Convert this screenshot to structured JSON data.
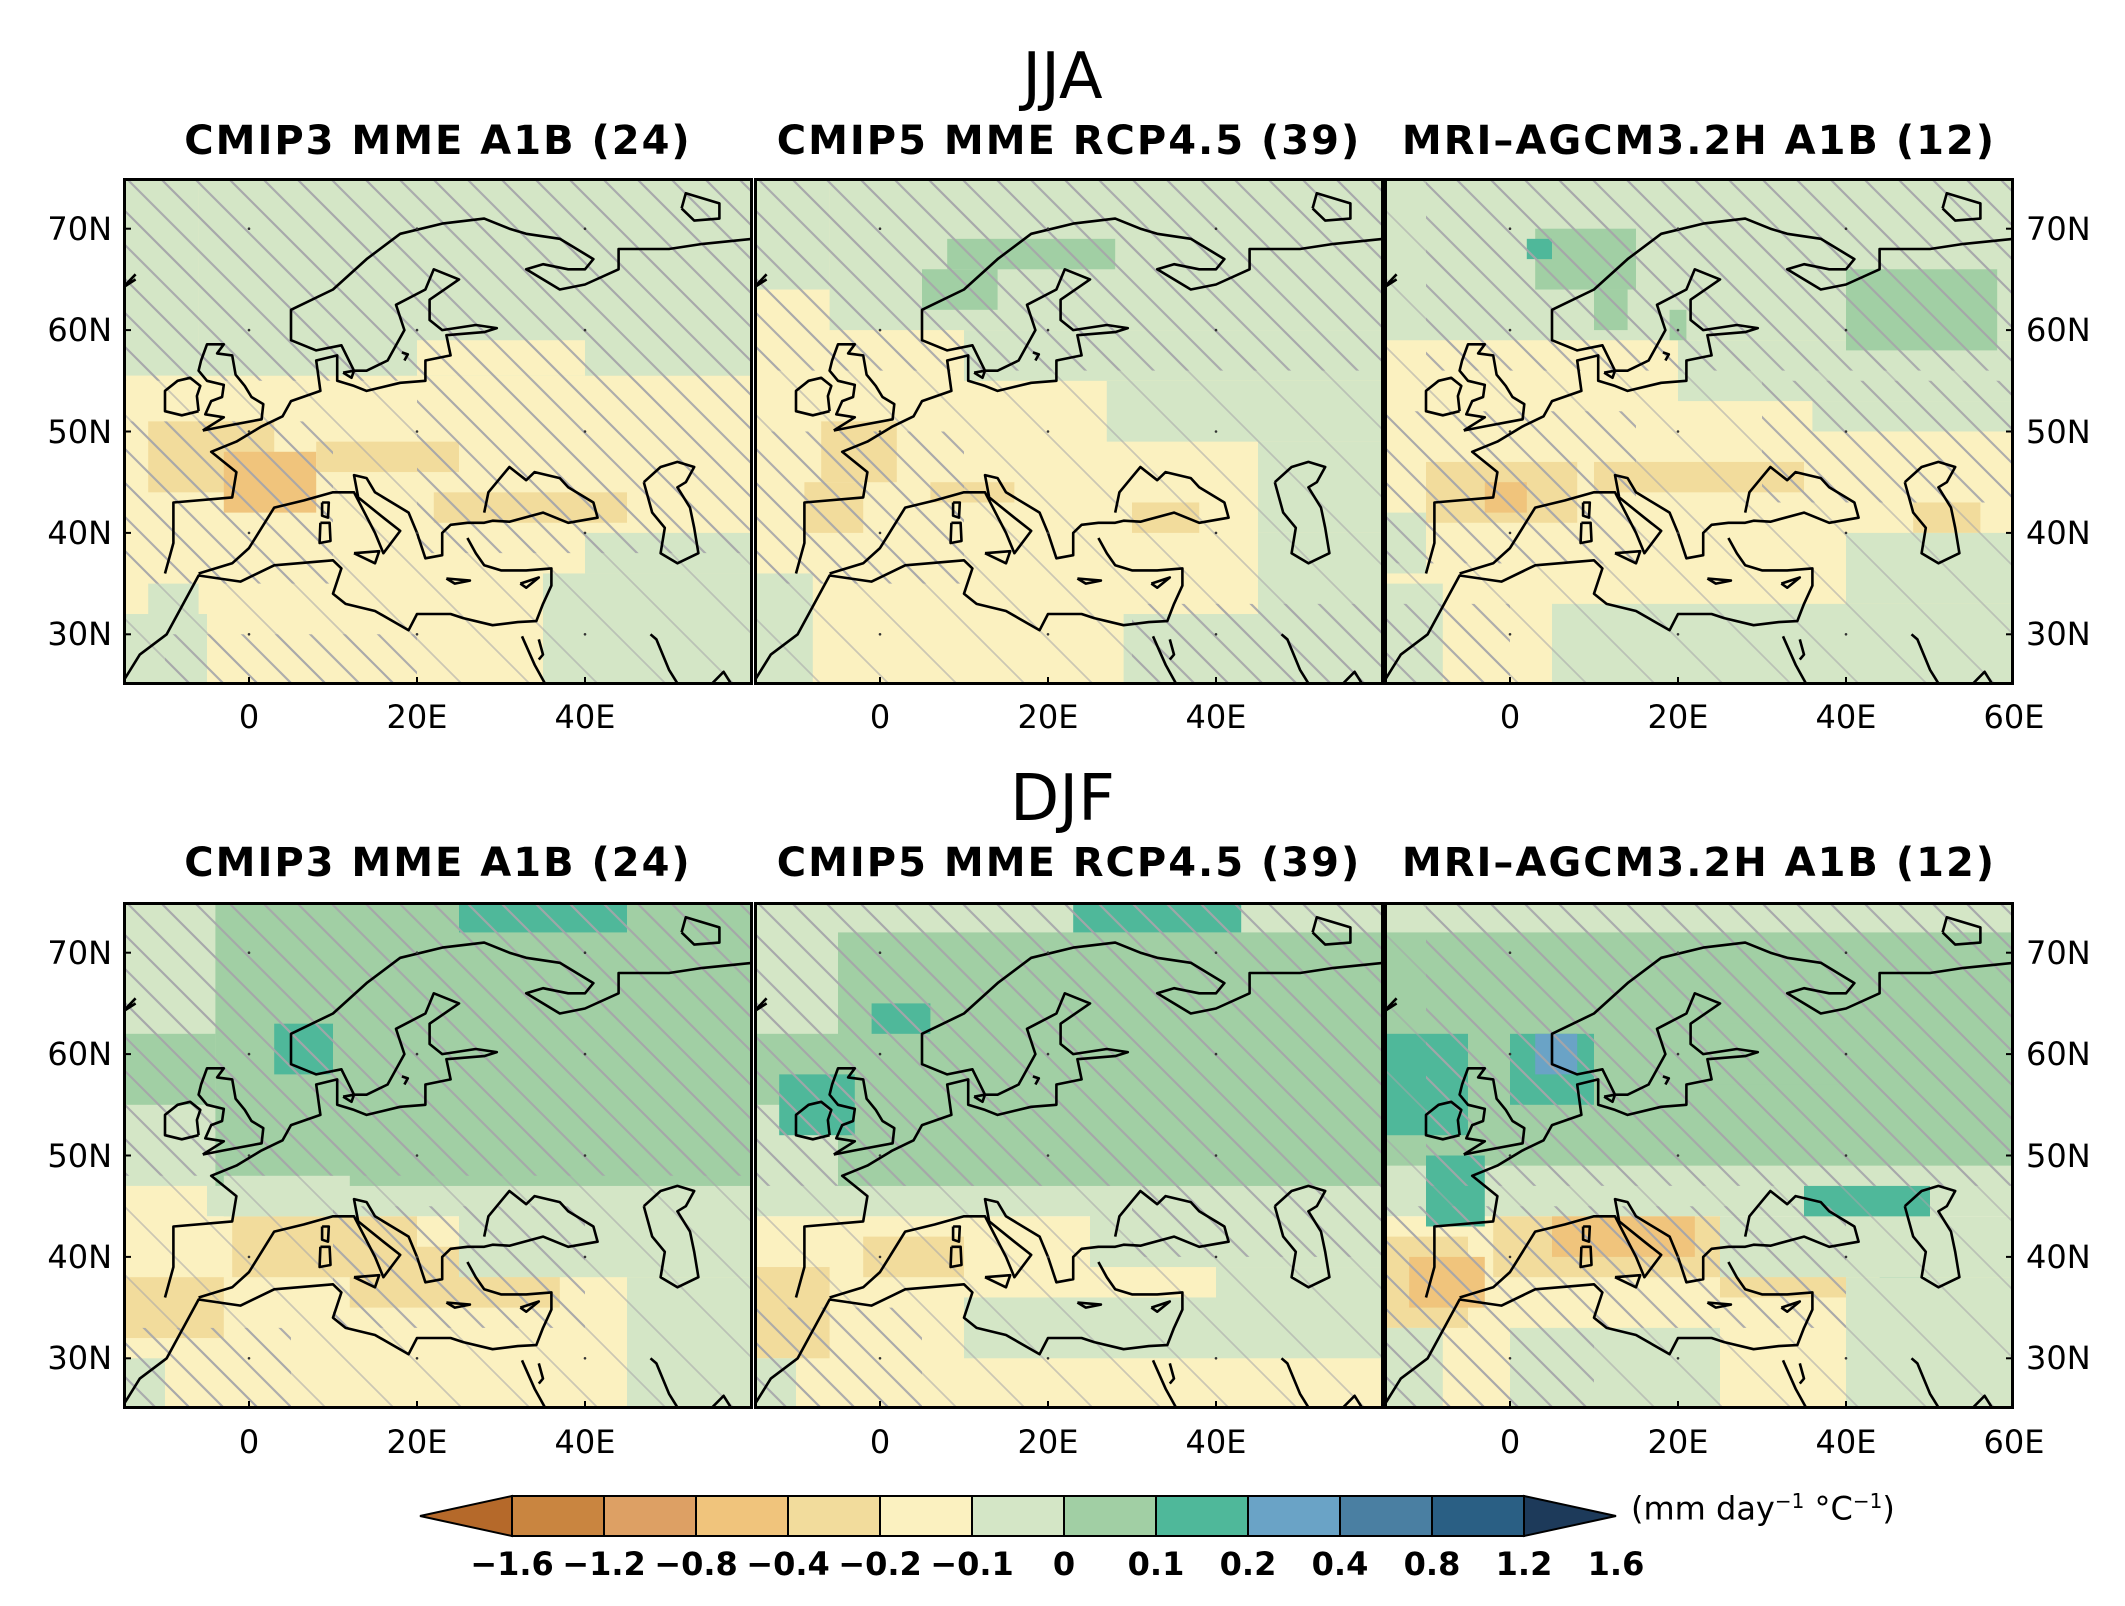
{
  "rows": [
    {
      "season": "JJA",
      "panels": [
        {
          "title": "CMIP3 MME A1B (24)",
          "pattern": "jja-cmip3"
        },
        {
          "title": "CMIP5 MME RCP4.5 (39)",
          "pattern": "jja-cmip5"
        },
        {
          "title": "MRI–AGCM3.2H A1B (12)",
          "pattern": "jja-mri"
        }
      ]
    },
    {
      "season": "DJF",
      "panels": [
        {
          "title": "CMIP3 MME A1B (24)",
          "pattern": "djf-cmip3"
        },
        {
          "title": "CMIP5 MME RCP4.5 (39)",
          "pattern": "djf-cmip5"
        },
        {
          "title": "MRI–AGCM3.2H A1B (12)",
          "pattern": "djf-mri"
        }
      ]
    }
  ],
  "latitude_ticks": [
    "70N",
    "60N",
    "50N",
    "40N",
    "30N"
  ],
  "longitude_ticks": [
    "0",
    "20E",
    "40E"
  ],
  "longitude_ticks_last": [
    "0",
    "20E",
    "40E",
    "60E"
  ],
  "colorbar": {
    "levels": [
      "−1.6",
      "−1.2",
      "−0.8",
      "−0.4",
      "−0.2",
      "−0.1",
      "0",
      "0.1",
      "0.2",
      "0.4",
      "0.8",
      "1.2",
      "1.6"
    ],
    "colors": [
      "#b5692a",
      "#c98540",
      "#dda064",
      "#f0c47c",
      "#f2dc9c",
      "#fbf1c0",
      "#d4e6c6",
      "#a1cfa4",
      "#4fb89a",
      "#6aa3c6",
      "#4a7fa2",
      "#2a5f84",
      "#1d3a5a"
    ],
    "unit_prefix": "(mm day",
    "unit_sup1": "−1",
    "unit_mid": " °C",
    "unit_sup2": "−1",
    "unit_suffix": ")"
  },
  "colors": {
    "land_outline": "#000000",
    "hatch": "#a6a6aa"
  }
}
